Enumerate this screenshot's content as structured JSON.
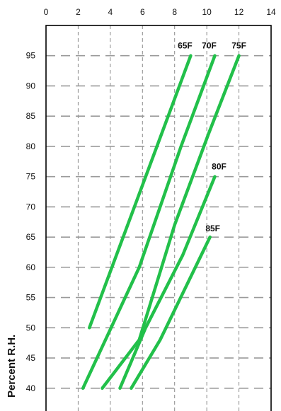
{
  "chart_data": {
    "type": "line",
    "ylabel": "Percent R.H.",
    "xlim": [
      0,
      14
    ],
    "ylim": [
      36,
      100
    ],
    "x_ticks": [
      0,
      2,
      4,
      6,
      8,
      10,
      12,
      14
    ],
    "y_ticks": [
      40,
      45,
      50,
      55,
      60,
      65,
      70,
      75,
      80,
      85,
      90,
      95
    ],
    "grid": true,
    "line_color": "#22c04a",
    "series": [
      {
        "name": "65F",
        "points": [
          [
            2.7,
            50
          ],
          [
            6.2,
            75
          ],
          [
            9.0,
            95
          ]
        ]
      },
      {
        "name": "70F",
        "points": [
          [
            2.3,
            40
          ],
          [
            5.8,
            60
          ],
          [
            8.4,
            80
          ],
          [
            10.5,
            95
          ]
        ]
      },
      {
        "name": "75F",
        "points": [
          [
            3.5,
            40
          ],
          [
            5.8,
            48
          ],
          [
            8.0,
            67
          ],
          [
            10.1,
            82
          ],
          [
            12.0,
            95
          ]
        ]
      },
      {
        "name": "80F",
        "points": [
          [
            4.6,
            40
          ],
          [
            6.2,
            50
          ],
          [
            8.5,
            62
          ],
          [
            10.5,
            75
          ]
        ]
      },
      {
        "name": "85F",
        "points": [
          [
            5.3,
            40
          ],
          [
            7.1,
            48
          ],
          [
            10.2,
            65
          ]
        ]
      }
    ]
  }
}
